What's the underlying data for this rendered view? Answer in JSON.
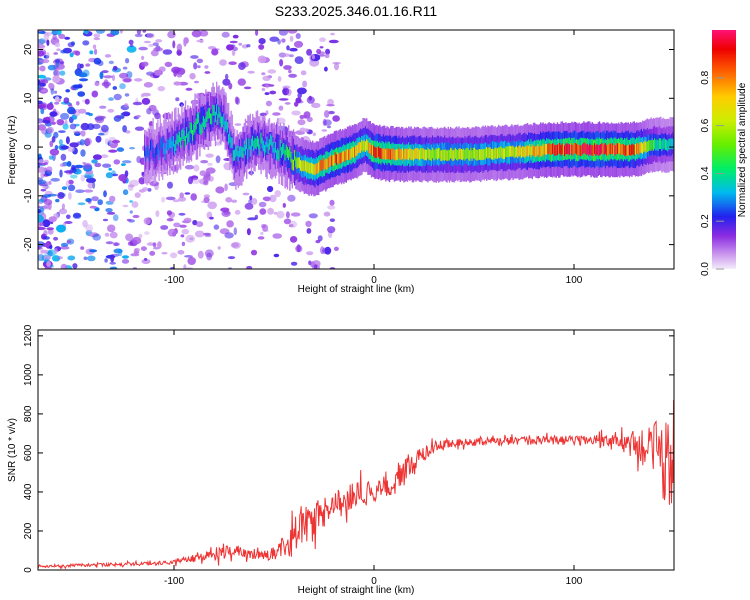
{
  "title": "S233.2025.346.01.16.R11",
  "colors": {
    "snr_line": "#ee3333",
    "frame": "#000000"
  },
  "chart_data": [
    {
      "type": "heatmap",
      "xlabel": "Height of straight line (km)",
      "ylabel": "Frequency (Hz)",
      "xlim": [
        -168,
        150
      ],
      "ylim": [
        -25,
        24
      ],
      "x_ticks": [
        -100,
        0,
        100
      ],
      "y_ticks": [
        -20,
        -10,
        0,
        10,
        20
      ],
      "colorbar": {
        "label": "Normalized spectral amplitude",
        "range": [
          0,
          1
        ],
        "ticks": [
          0.0,
          0.2,
          0.4,
          0.6,
          0.8
        ],
        "colormap": "rainbow"
      },
      "ridge": {
        "x": [
          -110,
          -100,
          -90,
          -80,
          -75,
          -70,
          -60,
          -50,
          -40,
          -35,
          -30,
          -20,
          -10,
          -5,
          0,
          10,
          30,
          50,
          70,
          90,
          110,
          130,
          140,
          150
        ],
        "y": [
          -1,
          1,
          4,
          7,
          6,
          -2,
          1,
          0,
          -3,
          -4,
          -4.5,
          -2.5,
          -1,
          0.5,
          -1,
          -1.5,
          -1.5,
          -1.5,
          -1,
          -0.5,
          -0.5,
          -0.5,
          0.5,
          0.5
        ],
        "amplitude": [
          0.2,
          0.3,
          0.4,
          0.35,
          0.3,
          0.3,
          0.35,
          0.3,
          0.5,
          0.6,
          0.7,
          0.8,
          0.75,
          0.6,
          0.85,
          0.75,
          0.55,
          0.55,
          0.6,
          0.85,
          0.9,
          0.8,
          0.4,
          0.3
        ]
      }
    },
    {
      "type": "line",
      "xlabel": "Height of straight line (km)",
      "ylabel": "SNR (10 * v/v)",
      "xlim": [
        -168,
        150
      ],
      "ylim": [
        0,
        1230
      ],
      "x_ticks": [
        -100,
        0,
        100
      ],
      "y_ticks": [
        0,
        200,
        400,
        600,
        800,
        1000,
        1200
      ],
      "series": [
        {
          "x": [
            -168,
            -120,
            -100,
            -90,
            -80,
            -70,
            -60,
            -50,
            -45,
            -40,
            -35,
            -30,
            -25,
            -20,
            -15,
            -10,
            -5,
            0,
            5,
            10,
            15,
            20,
            25,
            30,
            40,
            50,
            60,
            70,
            80,
            90,
            100,
            110,
            120,
            130,
            135,
            140,
            145,
            150
          ],
          "y": [
            20,
            30,
            40,
            60,
            80,
            100,
            70,
            80,
            120,
            180,
            240,
            270,
            300,
            330,
            360,
            380,
            400,
            400,
            420,
            450,
            500,
            560,
            600,
            630,
            650,
            655,
            660,
            660,
            660,
            665,
            665,
            665,
            660,
            650,
            620,
            600,
            580,
            600
          ],
          "noise": [
            10,
            12,
            15,
            30,
            45,
            50,
            30,
            50,
            80,
            120,
            150,
            150,
            120,
            100,
            100,
            100,
            110,
            90,
            90,
            100,
            110,
            80,
            50,
            40,
            30,
            30,
            30,
            30,
            30,
            35,
            35,
            40,
            50,
            90,
            150,
            250,
            350,
            400
          ]
        }
      ]
    }
  ]
}
